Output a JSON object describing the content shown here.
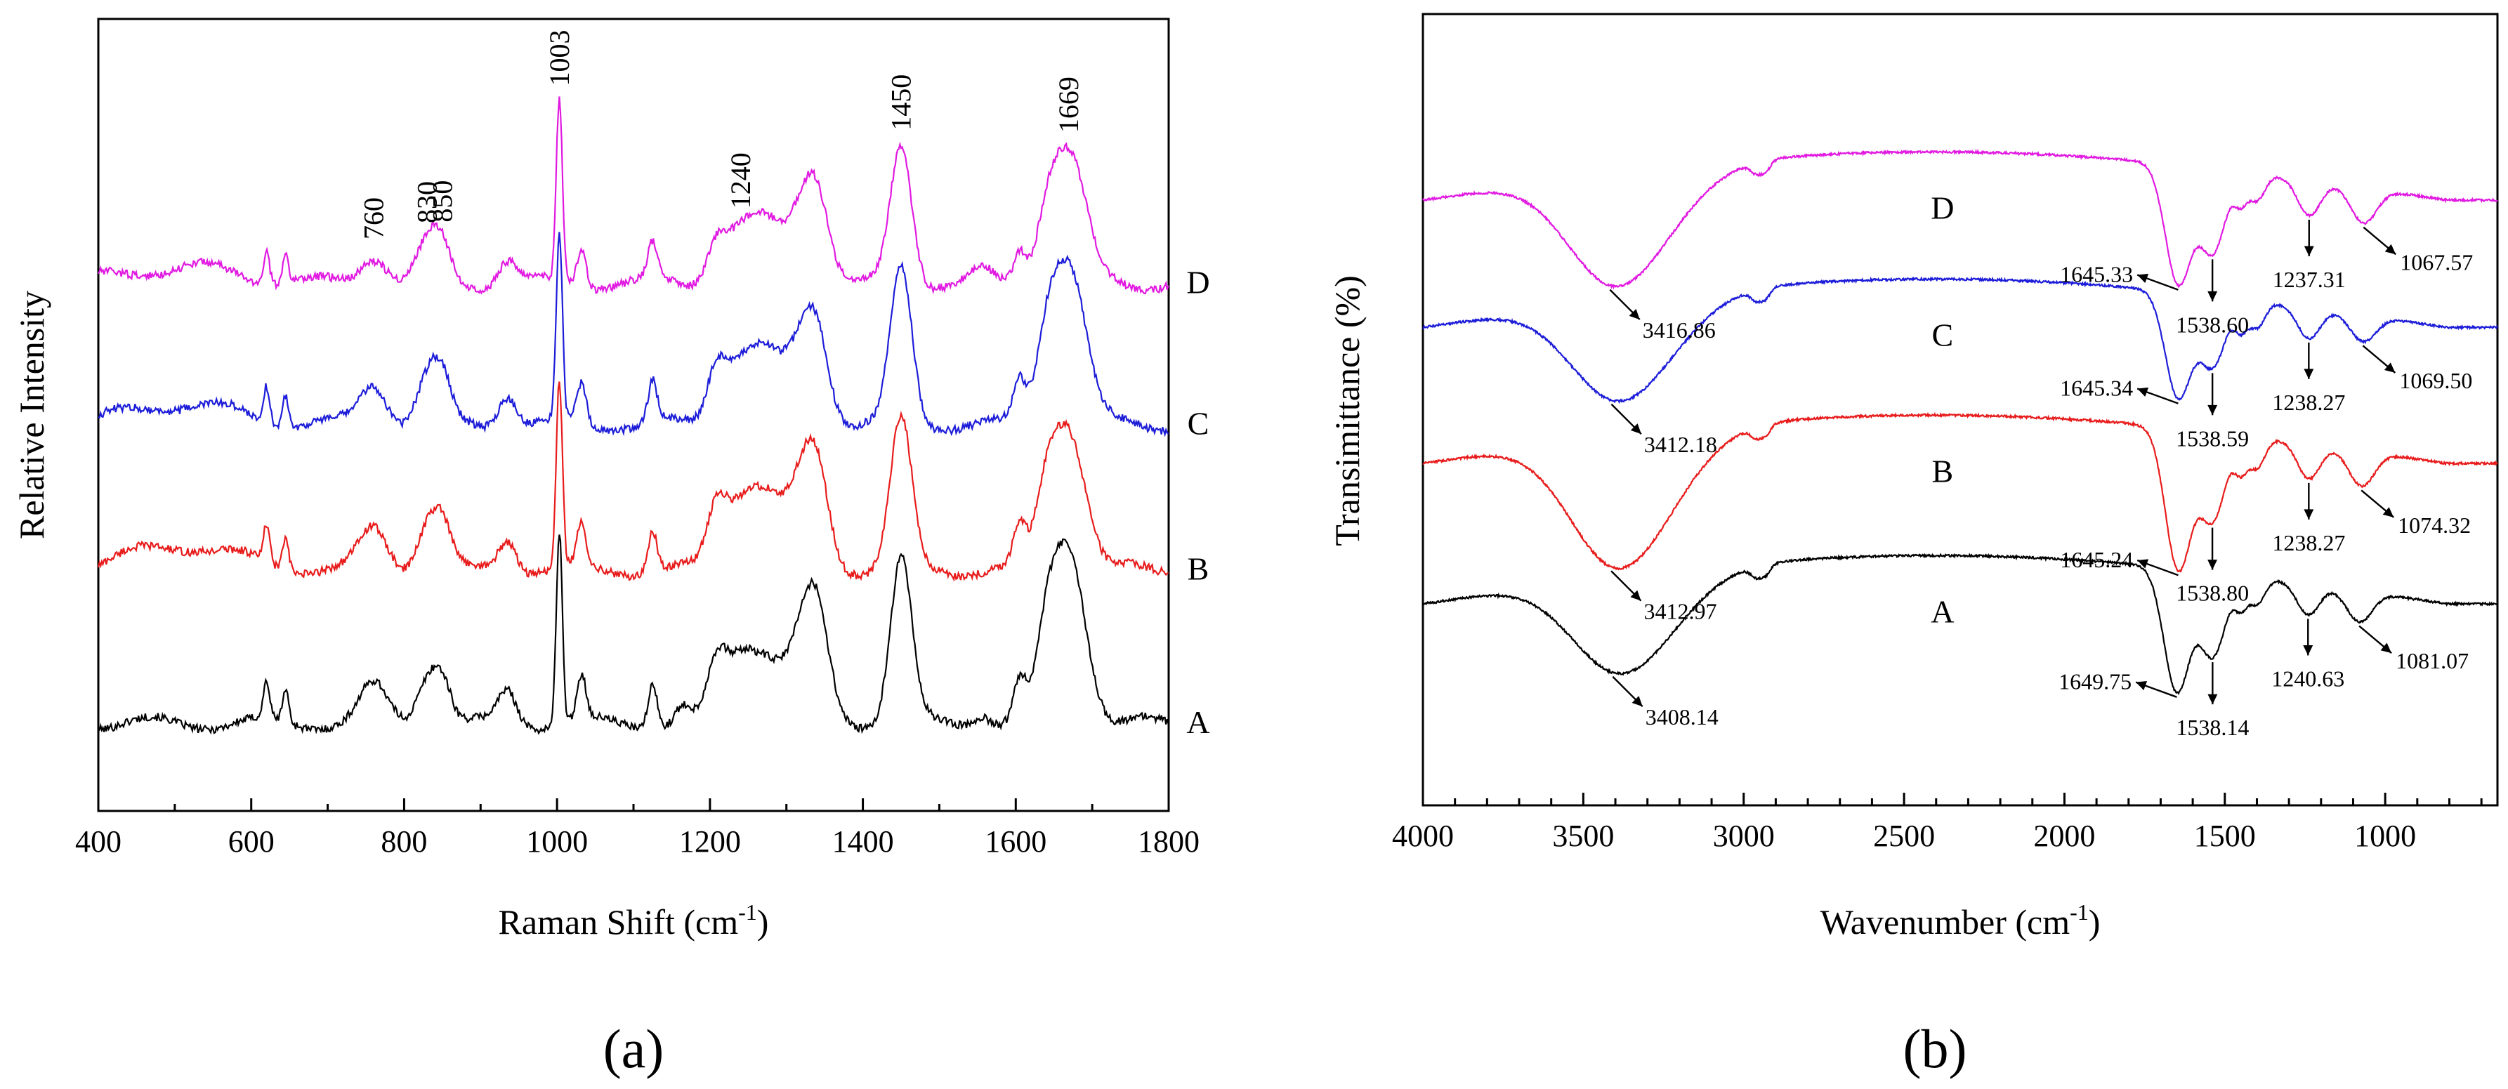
{
  "figure": {
    "panel_labels": [
      "(a)",
      "(b)"
    ]
  },
  "chart_data": [
    {
      "type": "line",
      "panel": "(a)",
      "title": "",
      "xlabel": "Raman Shift (cm-1)",
      "xlabel_main": "Raman Shift (cm",
      "xlabel_sup": "-1",
      "xlabel_close": ")",
      "ylabel": "Relative Intensity",
      "xlim": [
        400,
        1800
      ],
      "xticks": [
        400,
        600,
        800,
        1000,
        1200,
        1400,
        1600,
        1800
      ],
      "grid": false,
      "legend": "inline labels at right",
      "peak_labels": [
        "760",
        "830",
        "850",
        "1003",
        "1240",
        "1450",
        "1669"
      ],
      "peak_positions": [
        760,
        830,
        850,
        1003,
        1240,
        1450,
        1669
      ],
      "series": [
        {
          "name": "A",
          "color": "#000000",
          "baseline": 0,
          "peaks": [
            [
              620,
              0.45,
              4
            ],
            [
              645,
              0.4,
              4
            ],
            [
              760,
              0.45,
              18
            ],
            [
              830,
              0.55,
              14
            ],
            [
              850,
              0.5,
              12
            ],
            [
              935,
              0.4,
              12
            ],
            [
              1003,
              2.4,
              4
            ],
            [
              1032,
              0.55,
              6
            ],
            [
              1125,
              0.55,
              6
            ],
            [
              1165,
              0.2,
              10
            ],
            [
              1208,
              0.55,
              12
            ],
            [
              1240,
              0.85,
              22
            ],
            [
              1275,
              0.55,
              18
            ],
            [
              1320,
              0.95,
              22
            ],
            [
              1340,
              0.95,
              16
            ],
            [
              1450,
              2.05,
              14
            ],
            [
              1555,
              0.15,
              12
            ],
            [
              1605,
              0.5,
              8
            ],
            [
              1640,
              0.7,
              14
            ],
            [
              1669,
              2.15,
              22
            ]
          ]
        },
        {
          "name": "B",
          "color": "#e81c1c",
          "baseline": 1.9,
          "peaks": [
            [
              510,
              0.3,
              70
            ],
            [
              620,
              0.45,
              4
            ],
            [
              645,
              0.4,
              4
            ],
            [
              760,
              0.5,
              18
            ],
            [
              830,
              0.55,
              14
            ],
            [
              850,
              0.5,
              12
            ],
            [
              935,
              0.4,
              12
            ],
            [
              1003,
              2.3,
              4
            ],
            [
              1032,
              0.5,
              6
            ],
            [
              1125,
              0.5,
              6
            ],
            [
              1208,
              0.55,
              12
            ],
            [
              1240,
              0.9,
              24
            ],
            [
              1275,
              0.6,
              18
            ],
            [
              1320,
              0.95,
              22
            ],
            [
              1340,
              0.85,
              16
            ],
            [
              1450,
              1.85,
              14
            ],
            [
              1605,
              0.5,
              8
            ],
            [
              1640,
              0.7,
              14
            ],
            [
              1669,
              1.75,
              22
            ]
          ]
        },
        {
          "name": "C",
          "color": "#1d1dd9",
          "baseline": 3.7,
          "peaks": [
            [
              510,
              0.25,
              70
            ],
            [
              620,
              0.45,
              4
            ],
            [
              645,
              0.4,
              4
            ],
            [
              760,
              0.5,
              18
            ],
            [
              830,
              0.55,
              14
            ],
            [
              850,
              0.5,
              12
            ],
            [
              935,
              0.4,
              12
            ],
            [
              1003,
              2.3,
              4
            ],
            [
              1032,
              0.5,
              6
            ],
            [
              1125,
              0.5,
              6
            ],
            [
              1208,
              0.55,
              12
            ],
            [
              1240,
              0.8,
              24
            ],
            [
              1275,
              0.55,
              18
            ],
            [
              1320,
              0.9,
              22
            ],
            [
              1340,
              0.8,
              16
            ],
            [
              1450,
              1.9,
              14
            ],
            [
              1605,
              0.5,
              8
            ],
            [
              1640,
              0.75,
              14
            ],
            [
              1669,
              2.0,
              22
            ]
          ]
        },
        {
          "name": "D",
          "color": "#e11ae1",
          "baseline": 5.45,
          "peaks": [
            [
              510,
              0.2,
              70
            ],
            [
              620,
              0.4,
              4
            ],
            [
              645,
              0.35,
              4
            ],
            [
              760,
              0.35,
              18
            ],
            [
              830,
              0.45,
              14
            ],
            [
              850,
              0.4,
              12
            ],
            [
              935,
              0.3,
              12
            ],
            [
              1003,
              2.25,
              4
            ],
            [
              1032,
              0.45,
              6
            ],
            [
              1125,
              0.45,
              6
            ],
            [
              1208,
              0.4,
              12
            ],
            [
              1240,
              0.65,
              24
            ],
            [
              1275,
              0.45,
              18
            ],
            [
              1320,
              0.85,
              22
            ],
            [
              1340,
              0.8,
              16
            ],
            [
              1450,
              1.7,
              14
            ],
            [
              1555,
              0.15,
              12
            ],
            [
              1605,
              0.4,
              8
            ],
            [
              1640,
              0.6,
              14
            ],
            [
              1669,
              1.6,
              22
            ]
          ]
        }
      ]
    },
    {
      "type": "line",
      "panel": "(b)",
      "title": "",
      "xlabel": "Wavenumber (cm-1)",
      "xlabel_main": "Wavenumber (cm",
      "xlabel_sup": "-1",
      "xlabel_close": ")",
      "ylabel": "Transimittance (%)",
      "xlim": [
        4000,
        650
      ],
      "xticks": [
        4000,
        3500,
        3000,
        2500,
        2000,
        1500,
        1000
      ],
      "grid": false,
      "legend": "inline labels",
      "series": [
        {
          "name": "A",
          "color": "#000000",
          "offset": 0,
          "bands": [
            [
              3408.14,
              0.9,
              140
            ],
            [
              3250,
              0.35,
              140
            ],
            [
              2960,
              0.12,
              18
            ],
            [
              2930,
              0.1,
              15
            ],
            [
              1649.75,
              1.4,
              40
            ],
            [
              1538.14,
              0.95,
              40
            ],
            [
              1450,
              0.3,
              20
            ],
            [
              1400,
              0.3,
              25
            ],
            [
              1240.63,
              0.35,
              35
            ],
            [
              1081.07,
              0.35,
              40
            ]
          ],
          "annotations": [
            "3408.14",
            "1649.75",
            "1538.14",
            "1240.63",
            "1081.07"
          ]
        },
        {
          "name": "B",
          "color": "#e81c1c",
          "offset": 1.6,
          "bands": [
            [
              3412.97,
              1.25,
              140
            ],
            [
              3250,
              0.45,
              140
            ],
            [
              2960,
              0.12,
              18
            ],
            [
              2930,
              0.1,
              15
            ],
            [
              1645.24,
              1.6,
              40
            ],
            [
              1538.8,
              1.0,
              40
            ],
            [
              1450,
              0.35,
              20
            ],
            [
              1400,
              0.35,
              25
            ],
            [
              1238.27,
              0.4,
              35
            ],
            [
              1074.32,
              0.4,
              40
            ]
          ],
          "annotations": [
            "3412.97",
            "1645.24",
            "1538.80",
            "1238.27",
            "1074.32"
          ]
        },
        {
          "name": "C",
          "color": "#1d1dd9",
          "offset": 3.15,
          "bands": [
            [
              3412.18,
              0.95,
              140
            ],
            [
              3250,
              0.35,
              140
            ],
            [
              2960,
              0.12,
              18
            ],
            [
              2930,
              0.1,
              15
            ],
            [
              1645.34,
              1.2,
              40
            ],
            [
              1538.59,
              0.8,
              40
            ],
            [
              1450,
              0.3,
              20
            ],
            [
              1400,
              0.3,
              25
            ],
            [
              1238.27,
              0.35,
              35
            ],
            [
              1069.5,
              0.3,
              40
            ]
          ],
          "annotations": [
            "3412.18",
            "1645.34",
            "1538.59",
            "1238.27",
            "1069.50"
          ]
        },
        {
          "name": "D",
          "color": "#e11ae1",
          "offset": 4.6,
          "bands": [
            [
              3416.86,
              1.1,
              140
            ],
            [
              3250,
              0.35,
              140
            ],
            [
              2960,
              0.12,
              18
            ],
            [
              2930,
              0.1,
              15
            ],
            [
              1645.33,
              1.35,
              40
            ],
            [
              1538.6,
              0.95,
              40
            ],
            [
              1450,
              0.3,
              20
            ],
            [
              1400,
              0.3,
              25
            ],
            [
              1237.31,
              0.4,
              35
            ],
            [
              1067.57,
              0.4,
              40
            ]
          ],
          "annotations": [
            "3416.86",
            "1645.33",
            "1538.60",
            "1237.31",
            "1067.57"
          ]
        }
      ]
    }
  ]
}
